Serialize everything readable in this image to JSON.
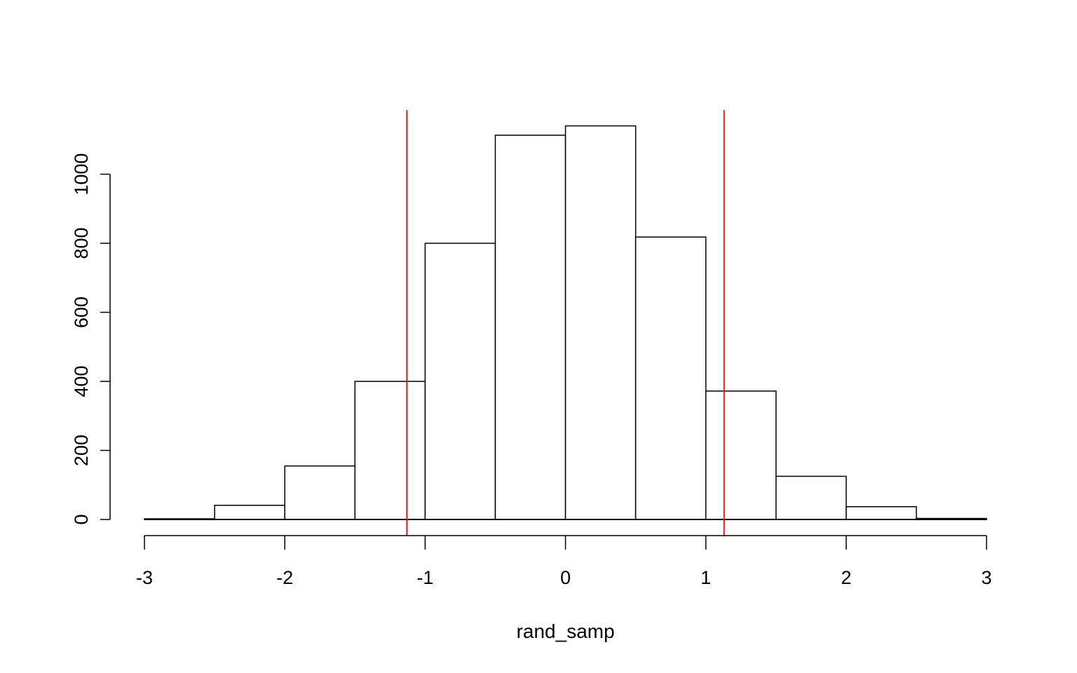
{
  "chart_data": {
    "type": "bar",
    "title": "",
    "xlabel": "rand_samp",
    "ylabel": "",
    "xlim": [
      -3,
      3
    ],
    "ylim": [
      0,
      1100
    ],
    "xticks": [
      "-3",
      "-2",
      "-1",
      "0",
      "1",
      "2",
      "3"
    ],
    "yticks": [
      "0",
      "200",
      "400",
      "600",
      "800",
      "1000"
    ],
    "bins": [
      {
        "x0": -3.0,
        "x1": -2.5,
        "count": 2
      },
      {
        "x0": -2.5,
        "x1": -2.0,
        "count": 41
      },
      {
        "x0": -2.0,
        "x1": -1.5,
        "count": 155
      },
      {
        "x0": -1.5,
        "x1": -1.0,
        "count": 400
      },
      {
        "x0": -1.0,
        "x1": -0.5,
        "count": 800
      },
      {
        "x0": -0.5,
        "x1": 0.0,
        "count": 1113
      },
      {
        "x0": 0.0,
        "x1": 0.5,
        "count": 1140
      },
      {
        "x0": 0.5,
        "x1": 1.0,
        "count": 818
      },
      {
        "x0": 1.0,
        "x1": 1.5,
        "count": 372
      },
      {
        "x0": 1.5,
        "x1": 2.0,
        "count": 125
      },
      {
        "x0": 2.0,
        "x1": 2.5,
        "count": 37
      },
      {
        "x0": 2.5,
        "x1": 3.0,
        "count": 3
      }
    ],
    "vlines": [
      {
        "x": -1.13,
        "color": "#e41a1c"
      },
      {
        "x": 1.13,
        "color": "#e41a1c"
      }
    ],
    "grid": false,
    "bar_fill": "#ffffff",
    "bar_stroke": "#000000"
  }
}
